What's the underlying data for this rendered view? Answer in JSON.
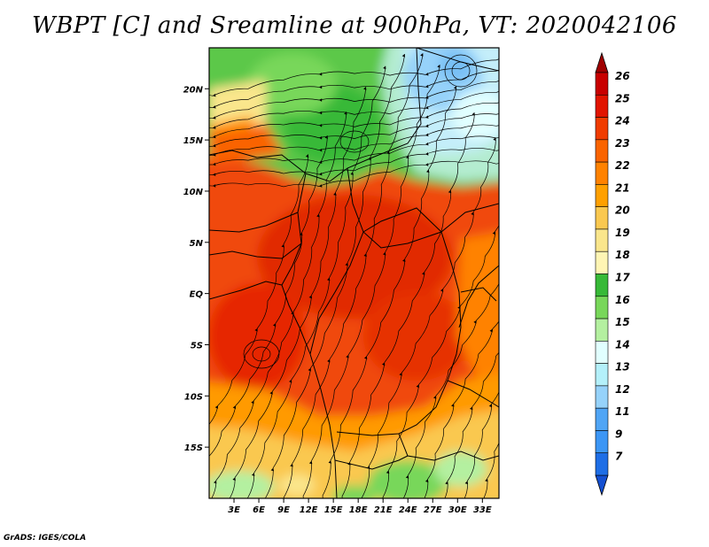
{
  "title": "WBPT [C] and Sreamline at 900hPa, VT: 2020042106",
  "credit": "GrADS: IGES/COLA",
  "map": {
    "variable": "WBPT [C]",
    "overlay": "Sreamline",
    "level": "900hPa",
    "valid_time": "2020042106",
    "lat_labels": [
      "20N",
      "15N",
      "10N",
      "5N",
      "EQ",
      "5S",
      "10S",
      "15S"
    ],
    "lon_labels": [
      "3E",
      "6E",
      "9E",
      "12E",
      "15E",
      "18E",
      "21E",
      "24E",
      "27E",
      "30E",
      "33E"
    ],
    "lat_values": [
      20,
      15,
      10,
      5,
      0,
      -5,
      -10,
      -15
    ],
    "lon_values": [
      3,
      6,
      9,
      12,
      15,
      18,
      21,
      24,
      27,
      30,
      33
    ],
    "lat_range": [
      -20,
      24
    ],
    "lon_range": [
      0,
      35
    ]
  },
  "colorbar": {
    "levels": [
      "26",
      "25",
      "24",
      "23",
      "22",
      "21",
      "20",
      "19",
      "18",
      "17",
      "16",
      "15",
      "14",
      "13",
      "12",
      "11",
      "9",
      "7"
    ],
    "colors": [
      "#c80000",
      "#e11400",
      "#f03c00",
      "#fa6400",
      "#ff8200",
      "#ffa000",
      "#fac850",
      "#fae68c",
      "#fff5b4",
      "#37b937",
      "#78d75a",
      "#b4f0a0",
      "#e1ffff",
      "#b4f0fa",
      "#96d2fa",
      "#50a5f5",
      "#3c96f5",
      "#1e6ee6"
    ],
    "top_color": "#a00000",
    "bottom_color": "#1450d2"
  }
}
